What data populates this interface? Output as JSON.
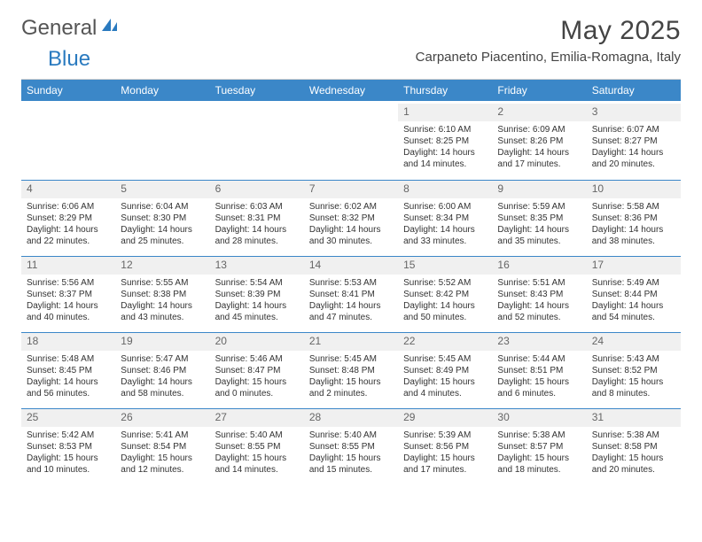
{
  "logo": {
    "text1": "General",
    "text2": "Blue"
  },
  "header": {
    "title": "May 2025",
    "subtitle": "Carpaneto Piacentino, Emilia-Romagna, Italy"
  },
  "colors": {
    "headerBar": "#3b87c8",
    "dayNumBg": "#f0f0f0",
    "weekBorder": "#3b87c8"
  },
  "daysOfWeek": [
    "Sunday",
    "Monday",
    "Tuesday",
    "Wednesday",
    "Thursday",
    "Friday",
    "Saturday"
  ],
  "weeks": [
    [
      null,
      null,
      null,
      null,
      {
        "n": "1",
        "sr": "6:10 AM",
        "ss": "8:25 PM",
        "dl": "14 hours and 14 minutes."
      },
      {
        "n": "2",
        "sr": "6:09 AM",
        "ss": "8:26 PM",
        "dl": "14 hours and 17 minutes."
      },
      {
        "n": "3",
        "sr": "6:07 AM",
        "ss": "8:27 PM",
        "dl": "14 hours and 20 minutes."
      }
    ],
    [
      {
        "n": "4",
        "sr": "6:06 AM",
        "ss": "8:29 PM",
        "dl": "14 hours and 22 minutes."
      },
      {
        "n": "5",
        "sr": "6:04 AM",
        "ss": "8:30 PM",
        "dl": "14 hours and 25 minutes."
      },
      {
        "n": "6",
        "sr": "6:03 AM",
        "ss": "8:31 PM",
        "dl": "14 hours and 28 minutes."
      },
      {
        "n": "7",
        "sr": "6:02 AM",
        "ss": "8:32 PM",
        "dl": "14 hours and 30 minutes."
      },
      {
        "n": "8",
        "sr": "6:00 AM",
        "ss": "8:34 PM",
        "dl": "14 hours and 33 minutes."
      },
      {
        "n": "9",
        "sr": "5:59 AM",
        "ss": "8:35 PM",
        "dl": "14 hours and 35 minutes."
      },
      {
        "n": "10",
        "sr": "5:58 AM",
        "ss": "8:36 PM",
        "dl": "14 hours and 38 minutes."
      }
    ],
    [
      {
        "n": "11",
        "sr": "5:56 AM",
        "ss": "8:37 PM",
        "dl": "14 hours and 40 minutes."
      },
      {
        "n": "12",
        "sr": "5:55 AM",
        "ss": "8:38 PM",
        "dl": "14 hours and 43 minutes."
      },
      {
        "n": "13",
        "sr": "5:54 AM",
        "ss": "8:39 PM",
        "dl": "14 hours and 45 minutes."
      },
      {
        "n": "14",
        "sr": "5:53 AM",
        "ss": "8:41 PM",
        "dl": "14 hours and 47 minutes."
      },
      {
        "n": "15",
        "sr": "5:52 AM",
        "ss": "8:42 PM",
        "dl": "14 hours and 50 minutes."
      },
      {
        "n": "16",
        "sr": "5:51 AM",
        "ss": "8:43 PM",
        "dl": "14 hours and 52 minutes."
      },
      {
        "n": "17",
        "sr": "5:49 AM",
        "ss": "8:44 PM",
        "dl": "14 hours and 54 minutes."
      }
    ],
    [
      {
        "n": "18",
        "sr": "5:48 AM",
        "ss": "8:45 PM",
        "dl": "14 hours and 56 minutes."
      },
      {
        "n": "19",
        "sr": "5:47 AM",
        "ss": "8:46 PM",
        "dl": "14 hours and 58 minutes."
      },
      {
        "n": "20",
        "sr": "5:46 AM",
        "ss": "8:47 PM",
        "dl": "15 hours and 0 minutes."
      },
      {
        "n": "21",
        "sr": "5:45 AM",
        "ss": "8:48 PM",
        "dl": "15 hours and 2 minutes."
      },
      {
        "n": "22",
        "sr": "5:45 AM",
        "ss": "8:49 PM",
        "dl": "15 hours and 4 minutes."
      },
      {
        "n": "23",
        "sr": "5:44 AM",
        "ss": "8:51 PM",
        "dl": "15 hours and 6 minutes."
      },
      {
        "n": "24",
        "sr": "5:43 AM",
        "ss": "8:52 PM",
        "dl": "15 hours and 8 minutes."
      }
    ],
    [
      {
        "n": "25",
        "sr": "5:42 AM",
        "ss": "8:53 PM",
        "dl": "15 hours and 10 minutes."
      },
      {
        "n": "26",
        "sr": "5:41 AM",
        "ss": "8:54 PM",
        "dl": "15 hours and 12 minutes."
      },
      {
        "n": "27",
        "sr": "5:40 AM",
        "ss": "8:55 PM",
        "dl": "15 hours and 14 minutes."
      },
      {
        "n": "28",
        "sr": "5:40 AM",
        "ss": "8:55 PM",
        "dl": "15 hours and 15 minutes."
      },
      {
        "n": "29",
        "sr": "5:39 AM",
        "ss": "8:56 PM",
        "dl": "15 hours and 17 minutes."
      },
      {
        "n": "30",
        "sr": "5:38 AM",
        "ss": "8:57 PM",
        "dl": "15 hours and 18 minutes."
      },
      {
        "n": "31",
        "sr": "5:38 AM",
        "ss": "8:58 PM",
        "dl": "15 hours and 20 minutes."
      }
    ]
  ],
  "labels": {
    "sunrise": "Sunrise: ",
    "sunset": "Sunset: ",
    "daylight": "Daylight: "
  }
}
